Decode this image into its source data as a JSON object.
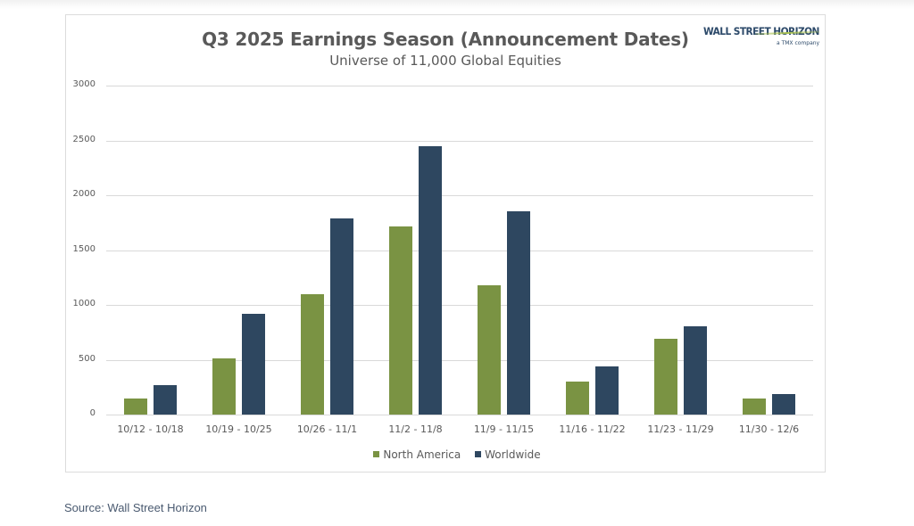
{
  "chart_data": {
    "type": "bar",
    "title": "Q3 2025 Earnings Season (Announcement Dates)",
    "subtitle": "Universe of 11,000 Global Equities",
    "xlabel": "",
    "ylabel": "",
    "ylim": [
      0,
      3000
    ],
    "yticks": [
      0,
      500,
      1000,
      1500,
      2000,
      2500,
      3000
    ],
    "grid": true,
    "legend_position": "bottom",
    "categories": [
      "10/12 - 10/18",
      "10/19 - 10/25",
      "10/26 - 11/1",
      "11/2 - 11/8",
      "11/9 - 11/15",
      "11/16 - 11/22",
      "11/23 - 11/29",
      "11/30 - 12/6"
    ],
    "series": [
      {
        "name": "North America",
        "color": "#7a9343",
        "values": [
          145,
          510,
          1095,
          1715,
          1180,
          300,
          690,
          150
        ]
      },
      {
        "name": "Worldwide",
        "color": "#2e4760",
        "values": [
          265,
          920,
          1785,
          2450,
          1855,
          440,
          805,
          185
        ]
      }
    ]
  },
  "logo": {
    "text": "WALL STREET HORIZON",
    "subtext": "a TMX company"
  },
  "source": "Source: Wall Street Horizon"
}
